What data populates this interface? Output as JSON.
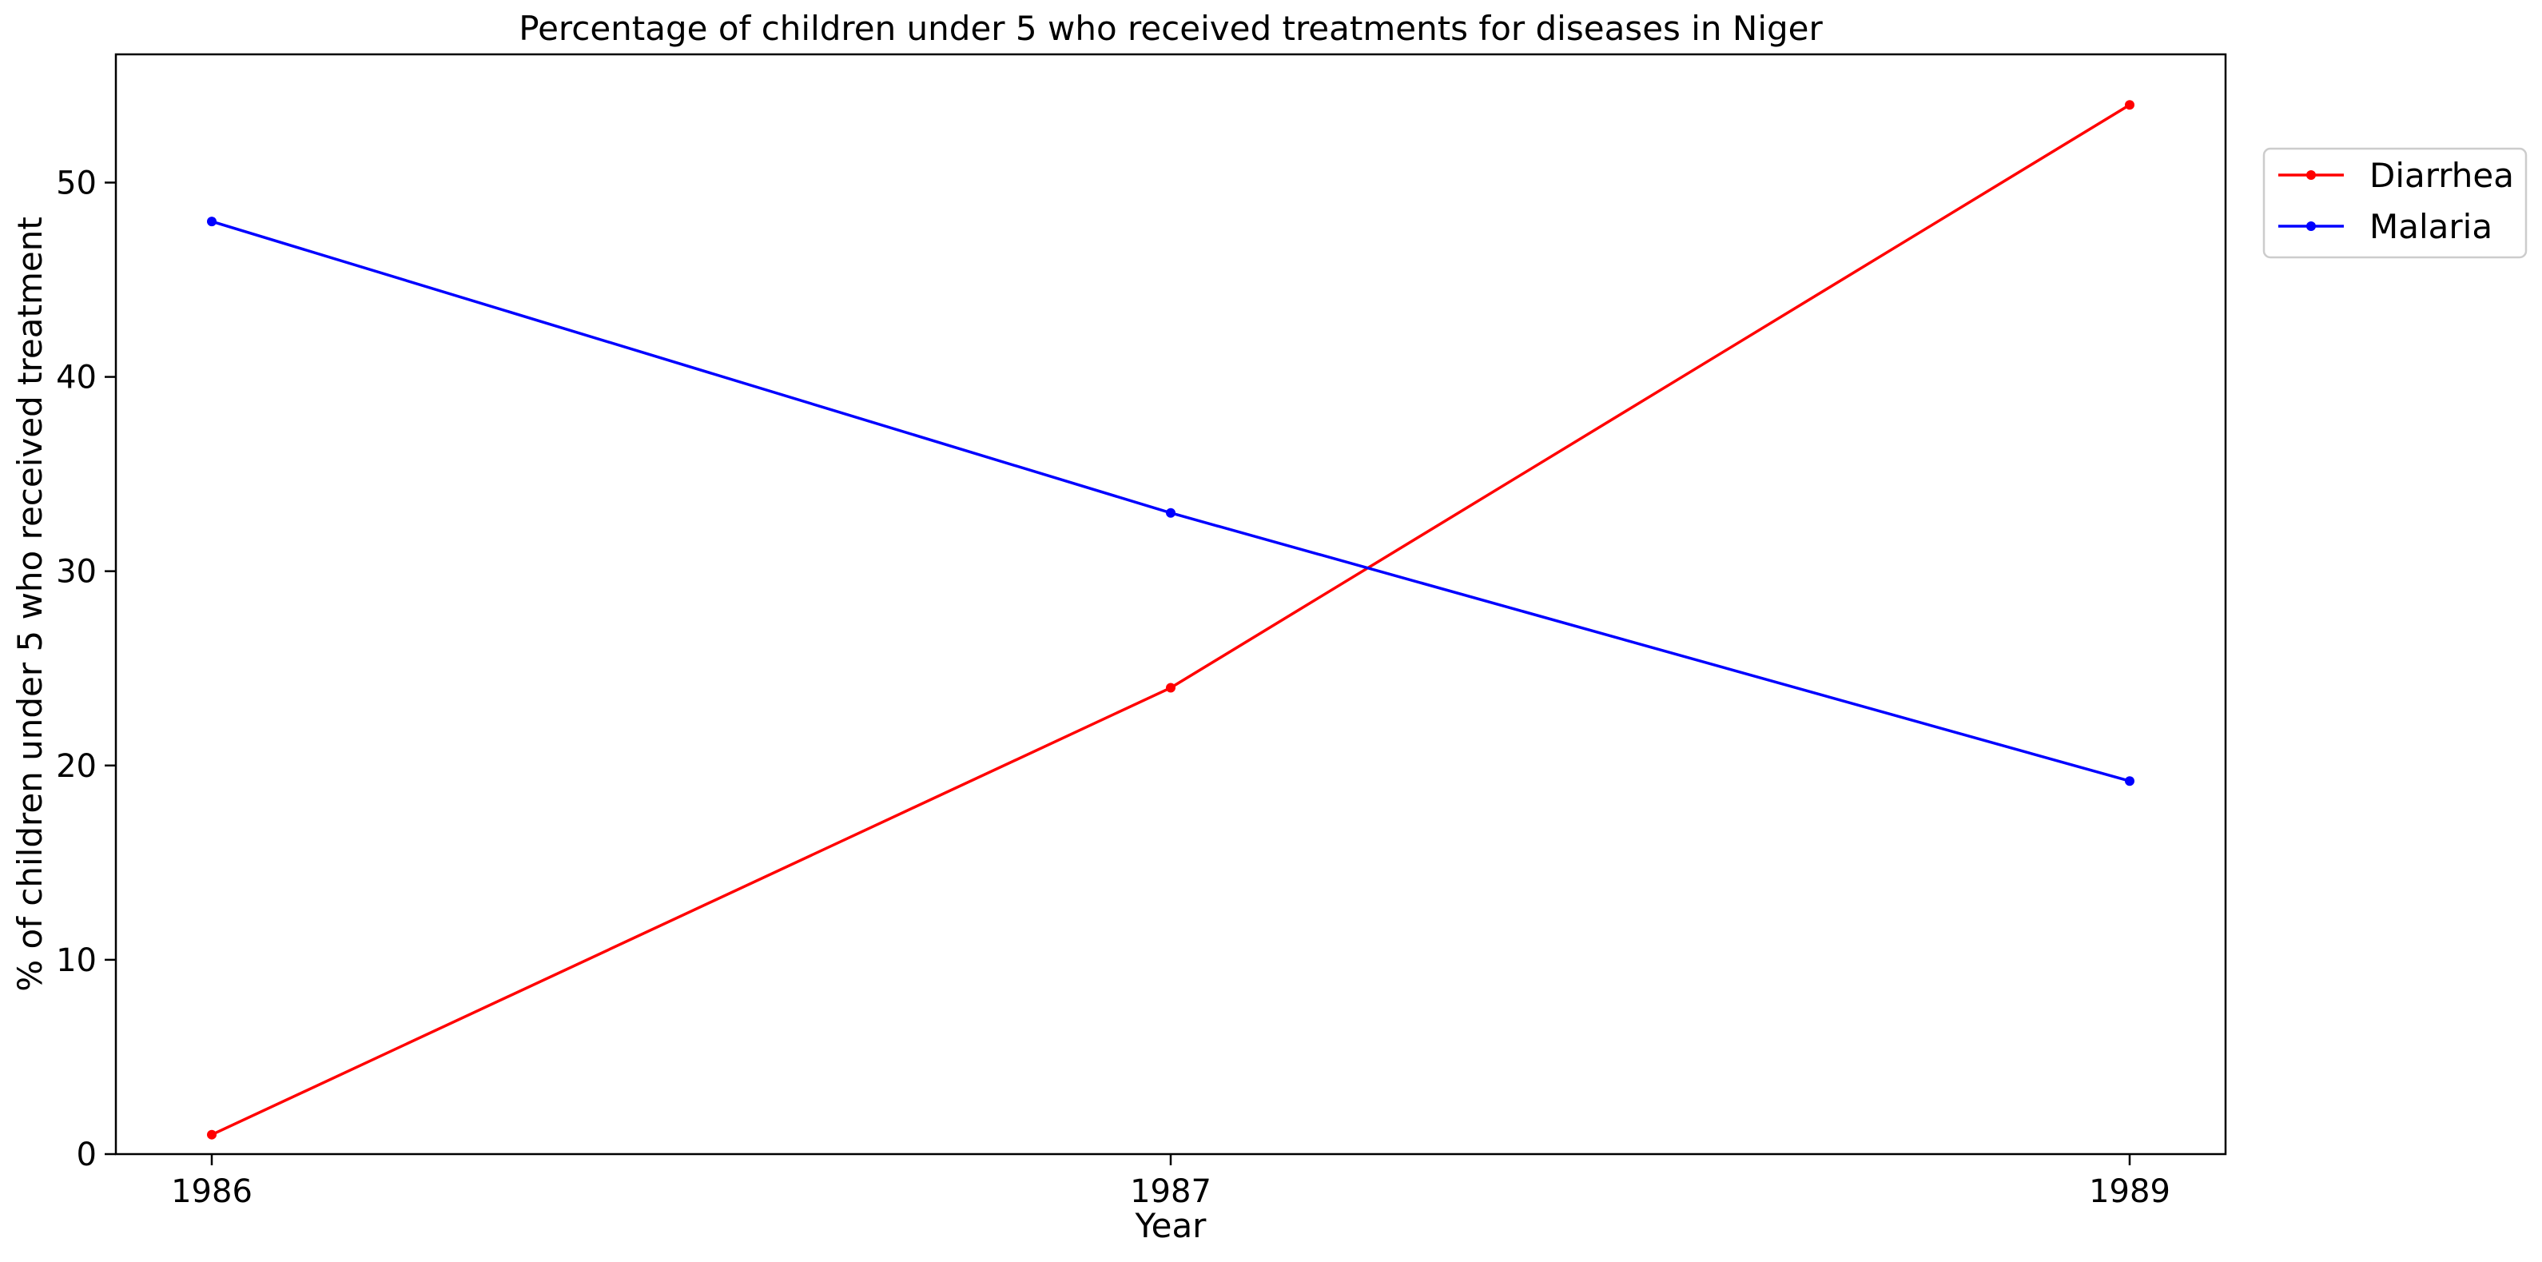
{
  "chart_data": {
    "type": "line",
    "title": "Percentage of children under 5 who received treatments for diseases in Niger",
    "xlabel": "Year",
    "ylabel": "% of children under 5 who received treatment",
    "categories": [
      "1986",
      "1987",
      "1989"
    ],
    "ylim": [
      0,
      56.6
    ],
    "yticks": [
      0,
      10,
      20,
      30,
      40,
      50
    ],
    "grid": false,
    "legend_position": "top-right outside",
    "series": [
      {
        "name": "Diarrhea",
        "color": "#ff0000",
        "values": [
          1,
          24,
          54
        ]
      },
      {
        "name": "Malaria",
        "color": "#0000ff",
        "values": [
          48,
          33,
          19.2
        ]
      }
    ]
  }
}
